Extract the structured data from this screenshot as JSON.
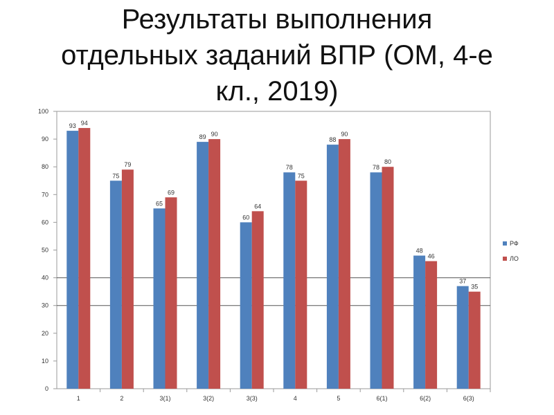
{
  "title": {
    "line1": "Результаты выполнения",
    "line2": "отдельных заданий   ВПР (ОМ, 4-е",
    "line3": "кл., 2019)"
  },
  "chart_data": {
    "type": "bar",
    "categories": [
      "1",
      "2",
      "3(1)",
      "3(2)",
      "3(3)",
      "4",
      "5",
      "6(1)",
      "6(2)",
      "6(3)"
    ],
    "series": [
      {
        "name": "РФ",
        "values": [
          93,
          75,
          65,
          89,
          60,
          78,
          88,
          78,
          48,
          37
        ],
        "color": "#4f81bd"
      },
      {
        "name": "ЛО",
        "values": [
          94,
          79,
          69,
          90,
          64,
          75,
          90,
          80,
          46,
          35
        ],
        "color": "#c0504d"
      }
    ],
    "ylim": [
      0,
      100
    ],
    "yticks": [
      0,
      10,
      20,
      30,
      40,
      50,
      60,
      70,
      80,
      90,
      100
    ],
    "gridlines": [
      30,
      40
    ],
    "legend_position": "right"
  }
}
